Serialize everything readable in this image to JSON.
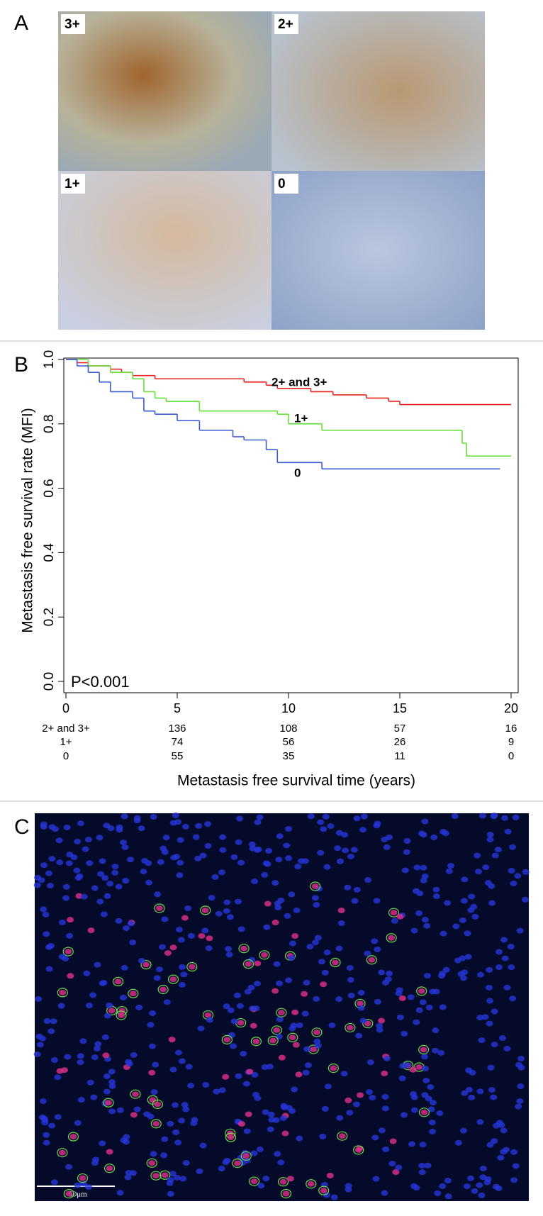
{
  "panels": {
    "a": {
      "label": "A",
      "images": [
        "3+",
        "2+",
        "1+",
        "0"
      ]
    },
    "b": {
      "label": "B"
    },
    "c": {
      "label": "C",
      "scale_bar": "50μm"
    }
  },
  "chart_data": {
    "type": "step",
    "ylabel": "Metastasis free survival rate (MFI)",
    "xlabel": "Metastasis free survival time (years)",
    "annotation": "P<0.001",
    "xlim": [
      0,
      20
    ],
    "ylim": [
      0,
      1
    ],
    "xticks": [
      0,
      5,
      10,
      15,
      20
    ],
    "yticks": [
      {
        "value": 0,
        "label": "0.0"
      },
      0.2,
      0.4,
      0.6,
      0.8,
      {
        "value": 1,
        "label": "1.0"
      }
    ],
    "series": [
      {
        "name": "2+ and 3+",
        "color": "#e8231f",
        "x": [
          0,
          0.5,
          1,
          2,
          2.5,
          3,
          4,
          8,
          9,
          9.5,
          11,
          12,
          13.5,
          14.5,
          15,
          20
        ],
        "values": [
          1.0,
          0.99,
          0.98,
          0.97,
          0.96,
          0.95,
          0.94,
          0.93,
          0.92,
          0.91,
          0.9,
          0.89,
          0.88,
          0.87,
          0.86,
          0.86
        ]
      },
      {
        "name": "1+",
        "color": "#66e03a",
        "x": [
          0,
          1,
          2,
          3,
          3.5,
          4,
          4.5,
          6,
          9.5,
          10,
          11.5,
          17.5,
          17.8,
          18,
          20
        ],
        "values": [
          1.0,
          0.98,
          0.96,
          0.94,
          0.9,
          0.88,
          0.87,
          0.84,
          0.83,
          0.8,
          0.78,
          0.78,
          0.74,
          0.7,
          0.7
        ]
      },
      {
        "name": "0",
        "color": "#3b5bd6",
        "x": [
          0,
          0.5,
          1,
          1.5,
          2,
          3,
          3.5,
          4,
          5,
          6,
          7.5,
          8,
          9,
          9.5,
          11.5,
          19.5
        ],
        "values": [
          1.0,
          0.98,
          0.96,
          0.93,
          0.9,
          0.88,
          0.84,
          0.83,
          0.81,
          0.78,
          0.76,
          0.75,
          0.72,
          0.68,
          0.66,
          0.66
        ]
      }
    ],
    "risk_table": {
      "times": [
        5,
        10,
        15,
        20
      ],
      "counts": [
        [
          136,
          108,
          57,
          16
        ],
        [
          74,
          56,
          26,
          9
        ],
        [
          55,
          35,
          11,
          0
        ]
      ]
    }
  }
}
